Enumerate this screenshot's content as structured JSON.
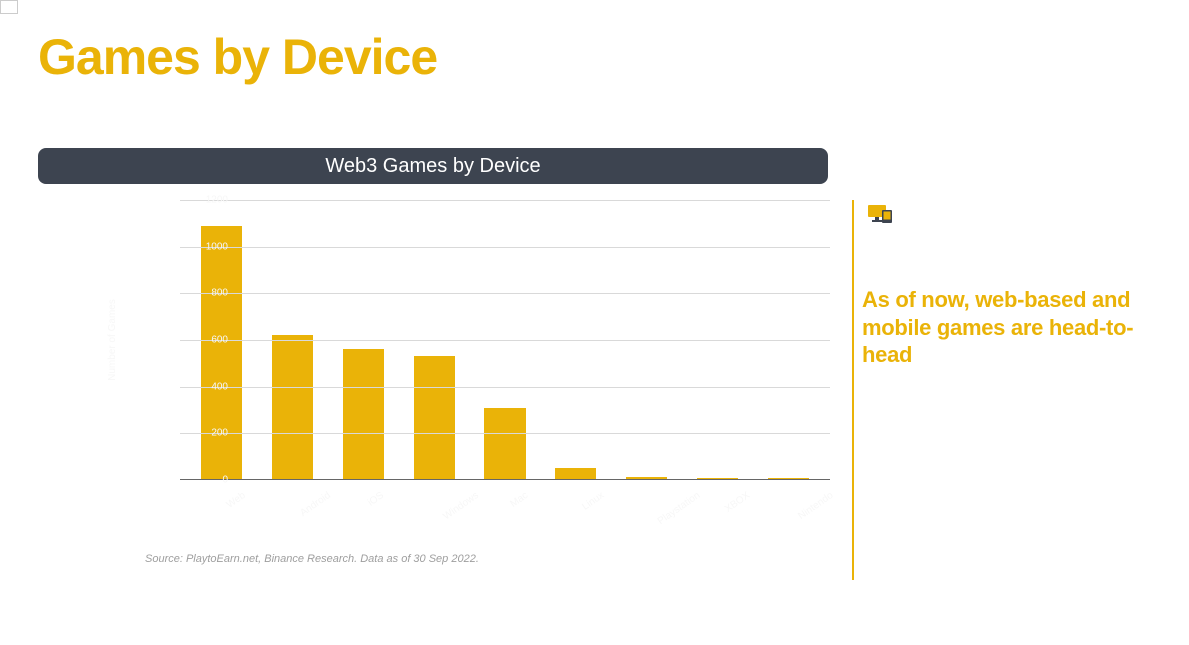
{
  "colors": {
    "accent": "#eab308",
    "title": "#eab308",
    "header_bg": "#3d4450",
    "header_text": "#ffffff",
    "grid": "#d9d9d9",
    "baseline": "#666666",
    "faint_label": "#f7f7f7",
    "source_text": "#9e9e9e",
    "side_text": "#eab308",
    "divider": "#eab308",
    "bar_fill": "#eab308",
    "background": "#ffffff"
  },
  "page_title": "Games by Device",
  "chart": {
    "type": "bar",
    "header": "Web3 Games by Device",
    "ylabel": "Number of Games",
    "ymax": 1200,
    "ytick_step": 200,
    "yticks": [
      0,
      200,
      400,
      600,
      800,
      1000,
      1200
    ],
    "categories": [
      "Web",
      "Android",
      "iOS",
      "Windows",
      "Mac",
      "Linux",
      "Playstation",
      "XBOX",
      "Nintendo"
    ],
    "values": [
      1090,
      620,
      560,
      530,
      310,
      50,
      12,
      8,
      5
    ],
    "bar_width_ratio": 0.58,
    "grid_color": "#d9d9d9",
    "background_color": "#ffffff",
    "label_fontsize": 10
  },
  "source": "Source: PlaytoEarn.net, Binance Research. Data as of 30 Sep 2022.",
  "side_note": "As of now, web-based and mobile games are head-to-head"
}
